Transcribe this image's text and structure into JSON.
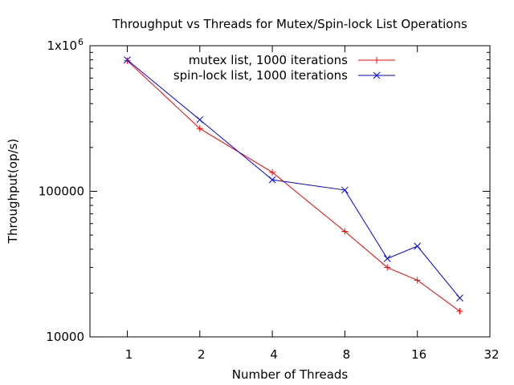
{
  "chart_data": {
    "type": "line",
    "title": "Throughput vs Threads for Mutex/Spin-lock List Operations",
    "xlabel": "Number of Threads",
    "ylabel": "Throughput(op/s)",
    "x_scale": "log2",
    "y_scale": "log10",
    "xlim": [
      0.7,
      32
    ],
    "ylim": [
      10000,
      1000000
    ],
    "x_ticks": [
      1,
      2,
      4,
      8,
      16,
      32
    ],
    "x_tick_labels": [
      "1",
      "2",
      "4",
      "8",
      "16",
      "32"
    ],
    "y_ticks": [
      10000,
      100000,
      1000000
    ],
    "y_tick_labels": [
      "10000",
      "100000",
      "1x10"
    ],
    "y_tick_top_exponent": "6",
    "grid": false,
    "legend_position": "top-right",
    "series": [
      {
        "name": "mutex list, 1000 iterations",
        "color": "#ff0000",
        "marker": "plus",
        "x": [
          1,
          2,
          4,
          8,
          12,
          16,
          24
        ],
        "y": [
          790000,
          270000,
          135000,
          53000,
          30000,
          24500,
          15000
        ]
      },
      {
        "name": "spin-lock list, 1000 iterations",
        "color": "#0000ff",
        "marker": "cross",
        "x": [
          1,
          2,
          4,
          8,
          12,
          16,
          24
        ],
        "y": [
          800000,
          310000,
          120000,
          102000,
          34500,
          42000,
          18500
        ]
      }
    ]
  }
}
